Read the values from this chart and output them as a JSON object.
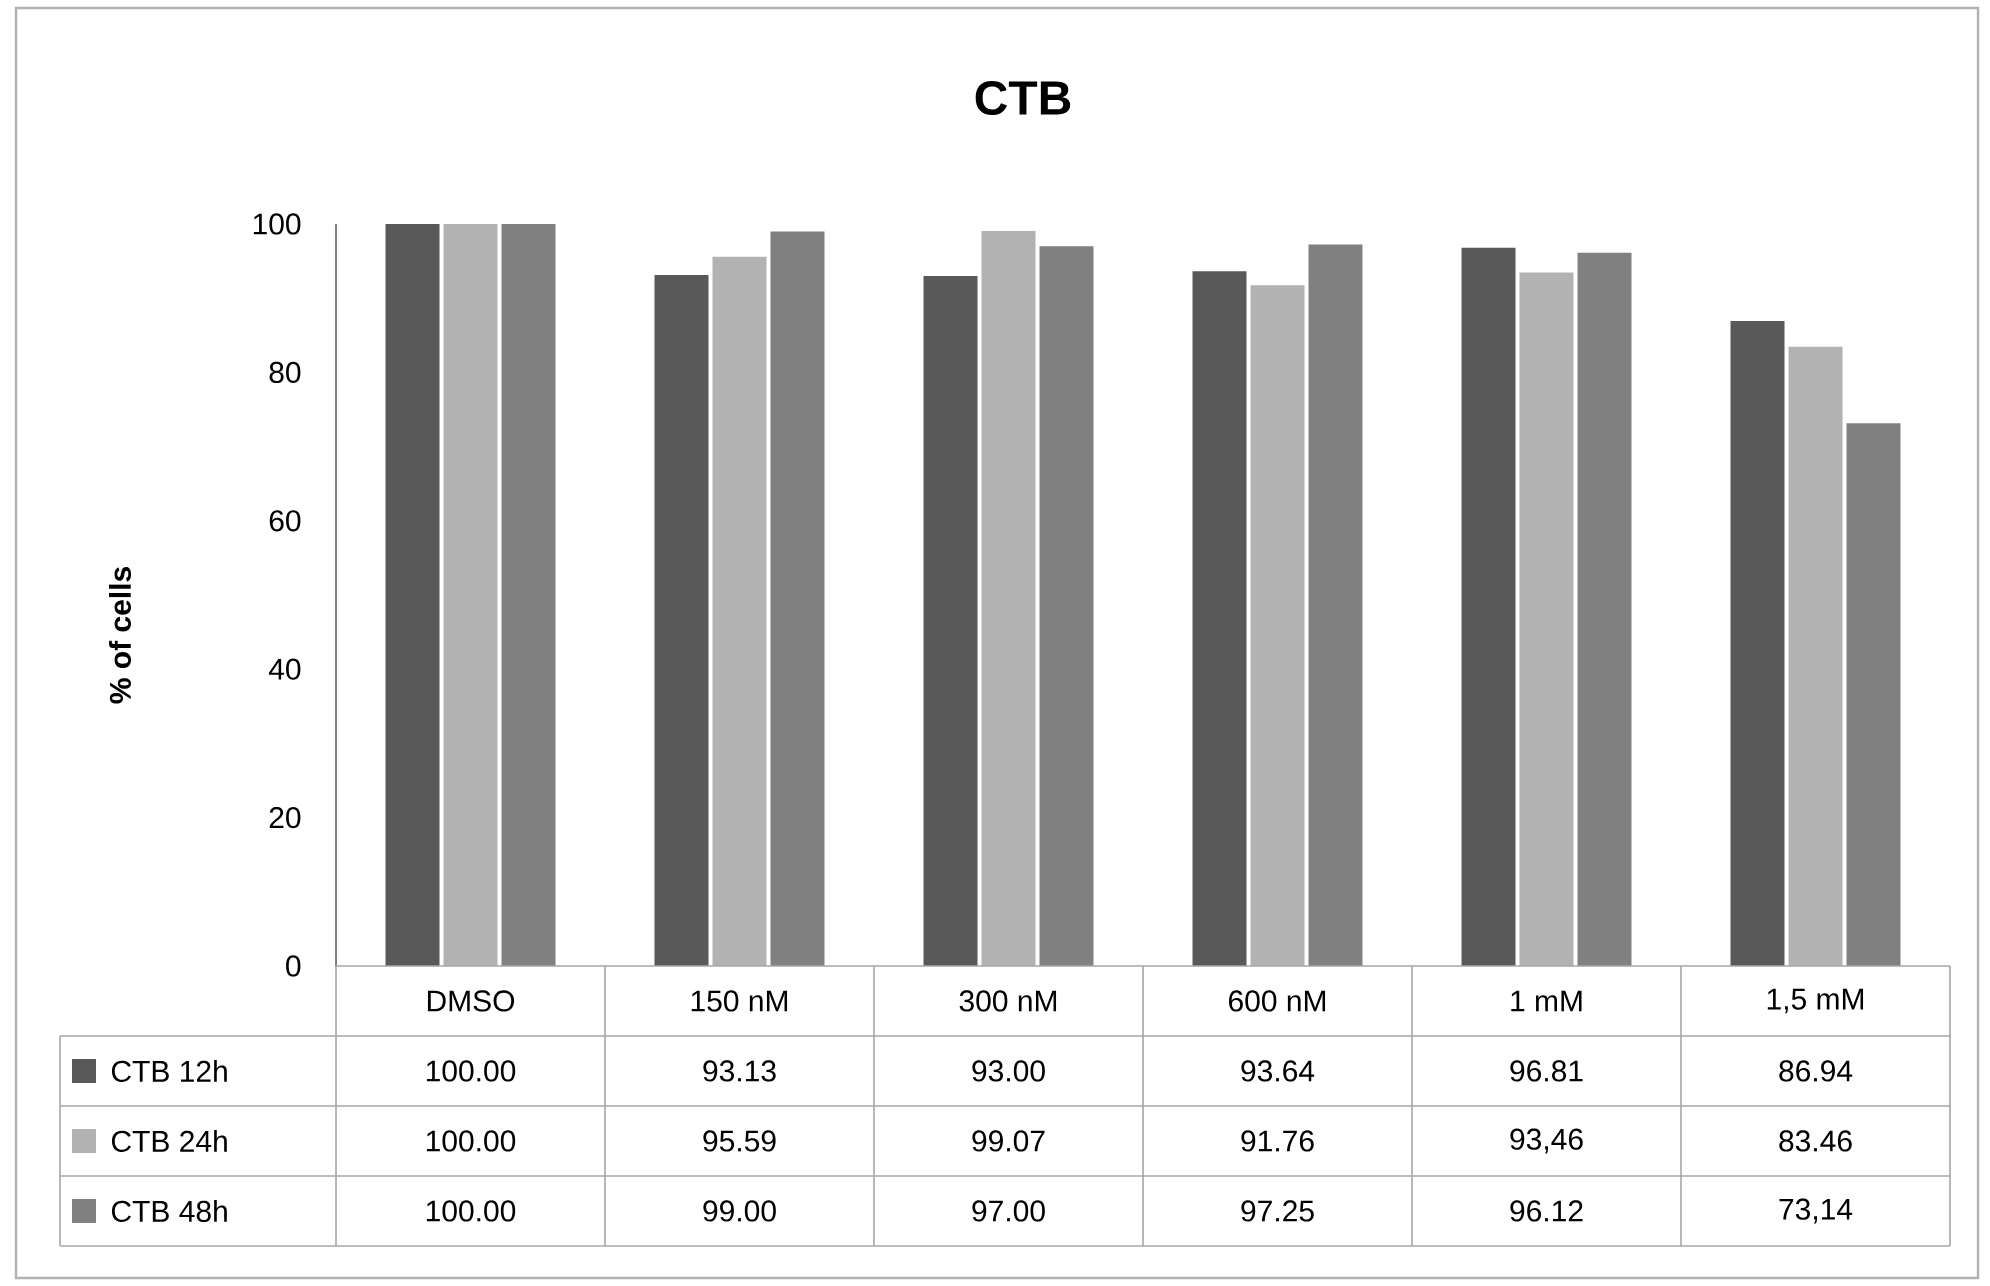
{
  "chart_data": {
    "type": "bar",
    "title": "CTB",
    "ylabel": "% of cells",
    "categories": [
      "DMSO",
      "150 nM",
      "300 nM",
      "600 nM",
      "1 mM",
      "1,5 mM"
    ],
    "ylim": [
      0,
      100
    ],
    "yticks": [
      0,
      20,
      40,
      60,
      80,
      100
    ],
    "grid": false,
    "legend": "bottom",
    "data_labels": false,
    "series": [
      {
        "name": "CTB 12h",
        "color": "#595959",
        "values": [
          100.0,
          93.13,
          93.0,
          93.64,
          96.81,
          86.94
        ],
        "value_labels": [
          "100.00",
          "93.13",
          "93.00",
          "93.64",
          "96.81",
          "86.94"
        ]
      },
      {
        "name": "CTB 24h",
        "color": "#b2b2b2",
        "values": [
          100.0,
          95.59,
          99.07,
          91.76,
          93.46,
          83.46
        ],
        "value_labels": [
          "100.00",
          "95.59",
          "99.07",
          "91.76",
          "93,46",
          "83.46"
        ]
      },
      {
        "name": "CTB 48h",
        "color": "#808080",
        "values": [
          100.0,
          99.0,
          97.0,
          97.25,
          96.12,
          73.14
        ],
        "value_labels": [
          "100.00",
          "99.00",
          "97.00",
          "97.25",
          "96.12",
          "73,14"
        ]
      }
    ]
  }
}
